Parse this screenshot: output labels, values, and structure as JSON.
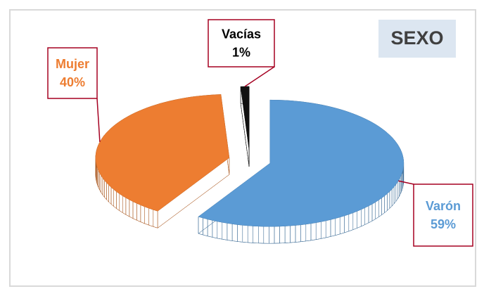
{
  "chart_data": {
    "type": "pie",
    "title": "SEXO",
    "categories": [
      "Varón",
      "Mujer",
      "Vacías"
    ],
    "values": [
      59,
      40,
      1
    ],
    "value_labels": [
      "59%",
      "40%",
      "1%"
    ],
    "colors": [
      "#5b9bd5",
      "#ed7d31",
      "#111111"
    ]
  }
}
